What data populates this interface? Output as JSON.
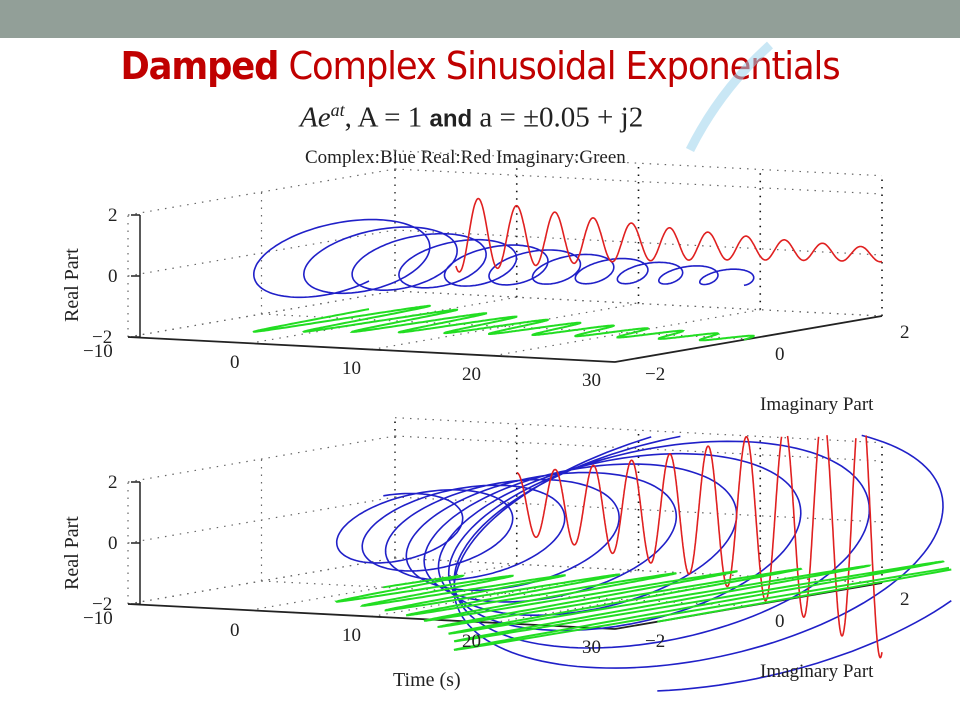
{
  "slide": {
    "title_bold": "Damped",
    "title_rest": " Complex Sinusoidal Exponentials",
    "formula_pre": "Ae",
    "formula_sup": "at",
    "formula_mid": ", A = 1 ",
    "formula_and": "and",
    "formula_post": " a = ±0.05 + j2",
    "legend": "Complex:Blue  Real:Red  Imaginary:Green"
  },
  "colors": {
    "topbar": "#929f98",
    "title": "#c00000",
    "complex": "#2020c8",
    "real": "#e02020",
    "imaginary": "#22dd22"
  },
  "chart_data": [
    {
      "type": "line",
      "title": "Ae^{at}, a = -0.05 + j2",
      "xlabel": "",
      "ylabel": "Real Part",
      "zlabel": "Imaginary Part",
      "a_real": -0.05,
      "omega": 2,
      "A": 1,
      "t_range": [
        -5,
        30
      ],
      "xlim": [
        -10,
        30
      ],
      "ylim": [
        -2,
        2
      ],
      "zlim": [
        -2,
        2
      ],
      "x_ticks": [
        "−10",
        "0",
        "10",
        "20",
        "30"
      ],
      "real_ticks": [
        "−2",
        "0",
        "2"
      ],
      "imag_ticks": [
        "−2",
        "0",
        "2"
      ],
      "series": [
        {
          "name": "Complex",
          "color": "blue"
        },
        {
          "name": "Real",
          "color": "red"
        },
        {
          "name": "Imaginary",
          "color": "green"
        }
      ]
    },
    {
      "type": "line",
      "title": "Ae^{at}, a = 0.05 + j2",
      "xlabel": "Time (s)",
      "ylabel": "Real Part",
      "zlabel": "Imaginary Part",
      "a_real": 0.05,
      "omega": 2,
      "A": 1,
      "t_range": [
        0,
        30
      ],
      "xlim": [
        -10,
        30
      ],
      "ylim": [
        -2,
        2
      ],
      "zlim": [
        -2,
        2
      ],
      "x_ticks": [
        "−10",
        "0",
        "10",
        "20",
        "30"
      ],
      "real_ticks": [
        "−2",
        "0",
        "2"
      ],
      "imag_ticks": [
        "−2",
        "0",
        "2"
      ],
      "series": [
        {
          "name": "Complex",
          "color": "blue"
        },
        {
          "name": "Real",
          "color": "red"
        },
        {
          "name": "Imaginary",
          "color": "green"
        }
      ]
    }
  ]
}
